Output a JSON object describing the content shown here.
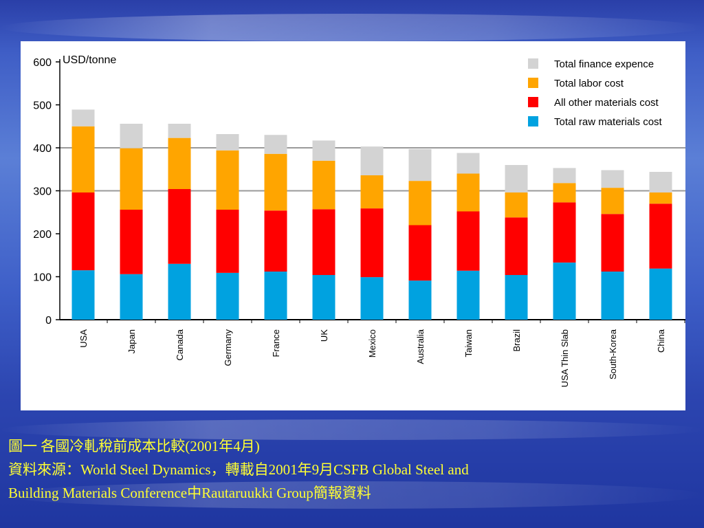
{
  "colors": {
    "finance": "#d3d3d3",
    "labor": "#ffa500",
    "other_materials": "#ff0000",
    "raw_materials": "#00a2e0",
    "caption": "#ffff33"
  },
  "caption": {
    "line1": "圖一 各國冷軋稅前成本比較(2001年4月)",
    "line2": "資料來源：World Steel Dynamics，轉載自2001年9月CSFB Global Steel and",
    "line3": "Building Materials Conference中Rautaruukki Group簡報資料"
  },
  "chart_data": {
    "type": "bar",
    "stacked": true,
    "ylabel": "USD/tonne",
    "ylim": [
      0,
      600
    ],
    "yticks": [
      0,
      100,
      200,
      300,
      400,
      500,
      600
    ],
    "grid": "horizontal lines at 300 and 400",
    "legend_position": "top-right",
    "categories": [
      "USA",
      "Japan",
      "Canada",
      "Germany",
      "France",
      "UK",
      "Mexico",
      "Australia",
      "Taiwan",
      "Brazil",
      "USA Thin Slab",
      "South-Korea",
      "China"
    ],
    "series": [
      {
        "name": "Total raw materials cost",
        "color": "#00a2e0",
        "values": [
          115,
          106,
          130,
          109,
          112,
          104,
          99,
          91,
          114,
          104,
          133,
          112,
          119
        ]
      },
      {
        "name": "All other materials cost",
        "color": "#ff0000",
        "values": [
          181,
          150,
          174,
          147,
          142,
          153,
          160,
          129,
          138,
          134,
          140,
          134,
          151
        ]
      },
      {
        "name": "Total labor cost",
        "color": "#ffa500",
        "values": [
          154,
          143,
          119,
          138,
          132,
          113,
          77,
          103,
          88,
          58,
          45,
          61,
          26
        ]
      },
      {
        "name": "Total finance expence",
        "color": "#d3d3d3",
        "values": [
          39,
          57,
          33,
          38,
          44,
          47,
          67,
          74,
          48,
          64,
          35,
          41,
          48
        ]
      }
    ],
    "legend_order": [
      "Total finance expence",
      "Total labor cost",
      "All other materials cost",
      "Total raw materials cost"
    ]
  }
}
